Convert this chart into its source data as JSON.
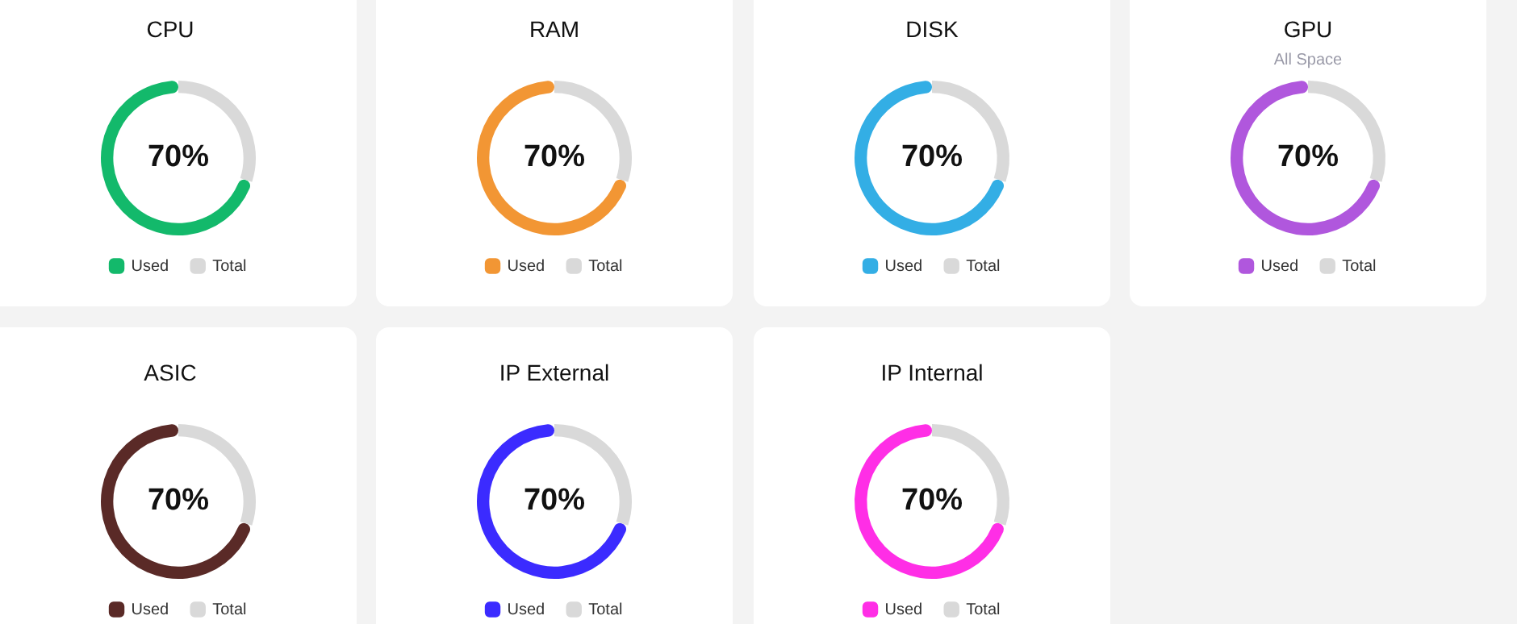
{
  "chart_data": [
    {
      "type": "donut",
      "title": "CPU",
      "categories": [
        "Used",
        "Total"
      ],
      "values": [
        70,
        30
      ],
      "colors": [
        "#13b96b",
        "#d9d9d9"
      ],
      "value_labels": [
        "70%",
        null
      ],
      "legend": "bottom"
    },
    {
      "type": "donut",
      "title": "RAM",
      "categories": [
        "Used",
        "Total"
      ],
      "values": [
        70,
        30
      ],
      "colors": [
        "#f29634",
        "#d9d9d9"
      ],
      "value_labels": [
        "70%",
        null
      ],
      "legend": "bottom"
    },
    {
      "type": "donut",
      "title": "DISK",
      "categories": [
        "Used",
        "Total"
      ],
      "values": [
        70,
        30
      ],
      "colors": [
        "#33aee5",
        "#d9d9d9"
      ],
      "value_labels": [
        "70%",
        null
      ],
      "legend": "bottom"
    },
    {
      "type": "donut",
      "title": "GPU",
      "subtitle": "All Space",
      "categories": [
        "Used",
        "Total"
      ],
      "values": [
        70,
        30
      ],
      "colors": [
        "#b057dd",
        "#d9d9d9"
      ],
      "value_labels": [
        "70%",
        null
      ],
      "legend": "bottom"
    },
    {
      "type": "donut",
      "title": "ASIC",
      "categories": [
        "Used",
        "Total"
      ],
      "values": [
        70,
        30
      ],
      "colors": [
        "#5a2a27",
        "#d9d9d9"
      ],
      "value_labels": [
        "70%",
        null
      ],
      "legend": "bottom"
    },
    {
      "type": "donut",
      "title": "IP External",
      "categories": [
        "Used",
        "Total"
      ],
      "values": [
        70,
        30
      ],
      "colors": [
        "#3b2bff",
        "#d9d9d9"
      ],
      "value_labels": [
        "70%",
        null
      ],
      "legend": "bottom"
    },
    {
      "type": "donut",
      "title": "IP Internal",
      "categories": [
        "Used",
        "Total"
      ],
      "values": [
        70,
        30
      ],
      "colors": [
        "#ff2ee6",
        "#d9d9d9"
      ],
      "value_labels": [
        "70%",
        null
      ],
      "legend": "bottom"
    }
  ]
}
